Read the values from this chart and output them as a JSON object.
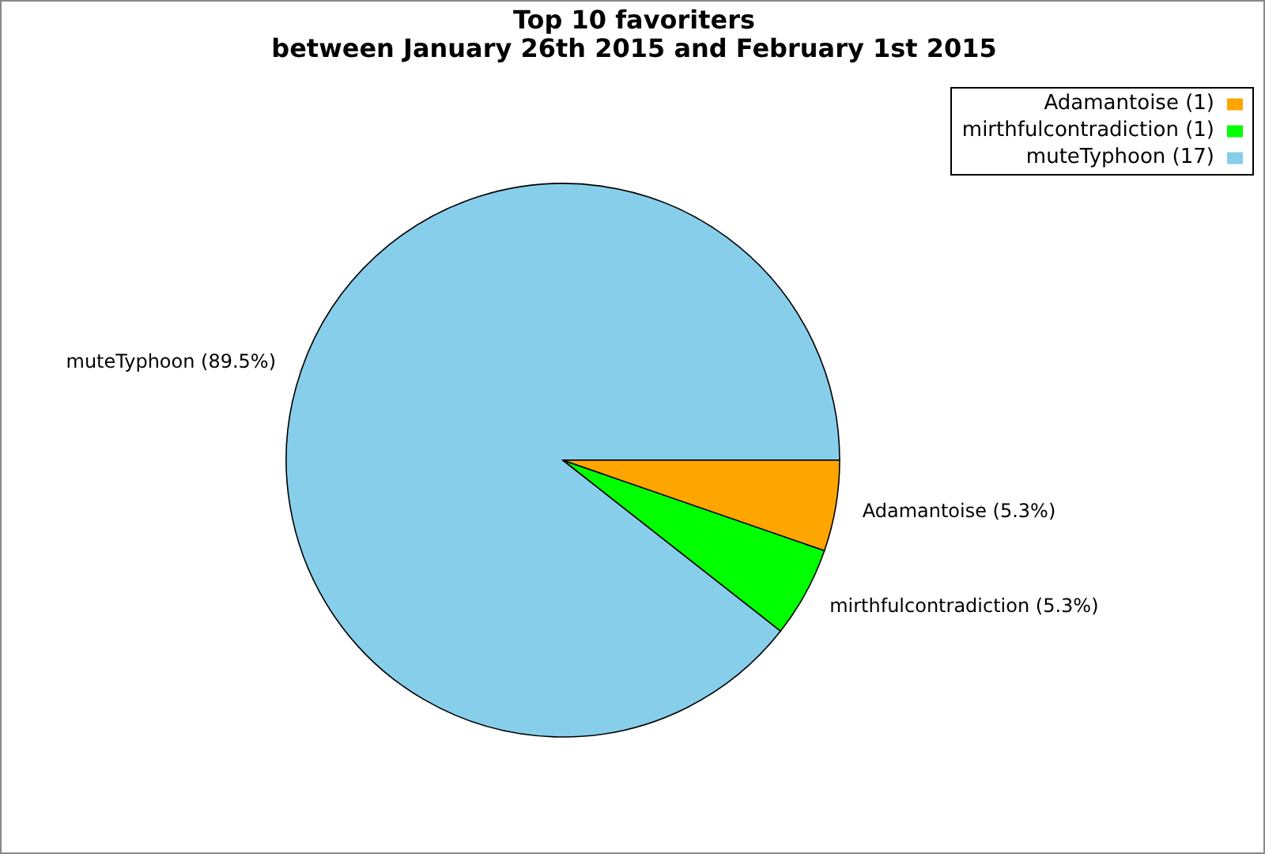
{
  "chart_data": {
    "type": "pie",
    "title": "Top 10 favoriters\nbetween January 26th 2015 and February 1st 2015",
    "categories": [
      "muteTyphoon (17)",
      "mirthfulcontradiction (1)",
      "Adamantoise (1)"
    ],
    "values": [
      89.5,
      5.3,
      5.3
    ],
    "colors": [
      "#87ceeb",
      "#00ff00",
      "#ffa500"
    ],
    "value_labels": [
      "muteTyphoon (89.5%)",
      "mirthfulcontradiction (5.3%)",
      "Adamantoise (5.3%)"
    ],
    "legend": "top right"
  }
}
